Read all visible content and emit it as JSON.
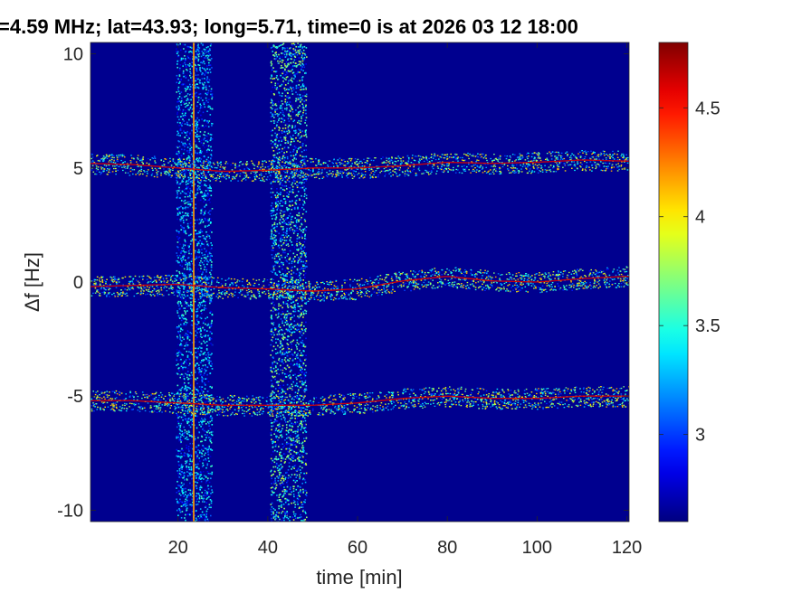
{
  "chart_data": {
    "type": "heatmap",
    "title": "=4.59 MHz;  lat=43.93; long=5.71, time=0 is at 2026 03 12 18:00",
    "xlabel": "time [min]",
    "ylabel": "Δf [Hz]",
    "xlim": [
      0.5,
      120.5
    ],
    "ylim": [
      -10.5,
      10.5
    ],
    "xticks": [
      20,
      40,
      60,
      80,
      100,
      120
    ],
    "xtick_labels": [
      "20",
      "40",
      "60",
      "80",
      "100",
      "120"
    ],
    "yticks": [
      -10,
      -5,
      0,
      5,
      10
    ],
    "ytick_labels": [
      "-10",
      "-5",
      "0",
      "5",
      "10"
    ],
    "colorbar": {
      "colormap": "jet",
      "clim": [
        2.6,
        4.8
      ],
      "ticks": [
        3,
        3.5,
        4,
        4.5
      ],
      "tick_labels": [
        "3",
        "3.5",
        "4",
        "4.5"
      ]
    },
    "background_level": 2.7,
    "traces": [
      {
        "name": "",
        "x": [
          0,
          10,
          20,
          30,
          40,
          50,
          60,
          70,
          80,
          90,
          100,
          110,
          120
        ],
        "y": [
          5.2,
          5.15,
          5.0,
          4.85,
          4.9,
          5.0,
          5.0,
          5.1,
          5.25,
          5.2,
          5.25,
          5.35,
          5.3
        ]
      },
      {
        "name": "",
        "x": [
          0,
          10,
          20,
          30,
          40,
          50,
          60,
          70,
          80,
          90,
          100,
          110,
          120
        ],
        "y": [
          -0.2,
          -0.15,
          -0.1,
          -0.25,
          -0.3,
          -0.4,
          -0.3,
          0.05,
          0.25,
          0.05,
          0.0,
          0.15,
          0.25
        ]
      },
      {
        "name": "",
        "x": [
          0,
          10,
          20,
          30,
          40,
          50,
          60,
          70,
          80,
          90,
          100,
          110,
          120
        ],
        "y": [
          -5.2,
          -5.2,
          -5.3,
          -5.4,
          -5.4,
          -5.4,
          -5.3,
          -5.1,
          -5.0,
          -5.1,
          -5.1,
          -5.0,
          -5.0
        ]
      }
    ],
    "vertical_bands": [
      {
        "x_start": 19.5,
        "x_end": 27.5,
        "intensity": 3.6
      },
      {
        "x_start": 40.5,
        "x_end": 48.5,
        "intensity": 3.9
      }
    ],
    "vertical_lines": [
      {
        "x": 23.5,
        "intensity": 4.2
      }
    ]
  }
}
